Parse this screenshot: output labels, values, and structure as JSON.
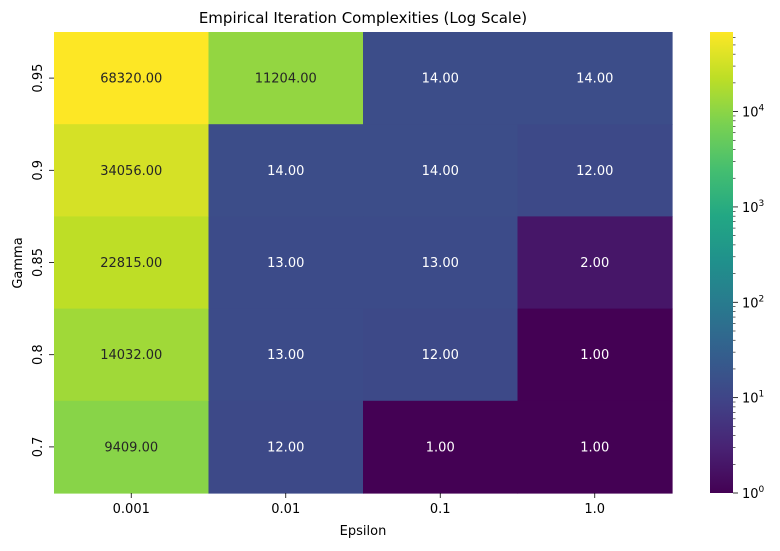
{
  "chart_data": {
    "type": "heatmap",
    "title": "Empirical Iteration Complexities (Log Scale)",
    "xlabel": "Epsilon",
    "ylabel": "Gamma",
    "x_categories": [
      "0.001",
      "0.01",
      "0.1",
      "1.0"
    ],
    "y_categories": [
      "0.95",
      "0.9",
      "0.85",
      "0.8",
      "0.7"
    ],
    "values": [
      [
        68320,
        11204,
        14,
        14
      ],
      [
        34056,
        14,
        14,
        12
      ],
      [
        22815,
        13,
        13,
        2
      ],
      [
        14032,
        13,
        12,
        1
      ],
      [
        9409,
        12,
        1,
        1
      ]
    ],
    "cell_labels": [
      [
        "68320.00",
        "11204.00",
        "14.00",
        "14.00"
      ],
      [
        "34056.00",
        "14.00",
        "14.00",
        "12.00"
      ],
      [
        "22815.00",
        "13.00",
        "13.00",
        "2.00"
      ],
      [
        "14032.00",
        "13.00",
        "12.00",
        "1.00"
      ],
      [
        "9409.00",
        "12.00",
        "1.00",
        "1.00"
      ]
    ],
    "colormap": "viridis",
    "colorscale": "log",
    "color_range": [
      1,
      68320
    ],
    "colorbar_ticks": [
      {
        "value": 1,
        "base": "10",
        "exp": "0"
      },
      {
        "value": 10,
        "base": "10",
        "exp": "1"
      },
      {
        "value": 100,
        "base": "10",
        "exp": "2"
      },
      {
        "value": 1000,
        "base": "10",
        "exp": "3"
      },
      {
        "value": 10000,
        "base": "10",
        "exp": "4"
      }
    ],
    "grid": false
  }
}
